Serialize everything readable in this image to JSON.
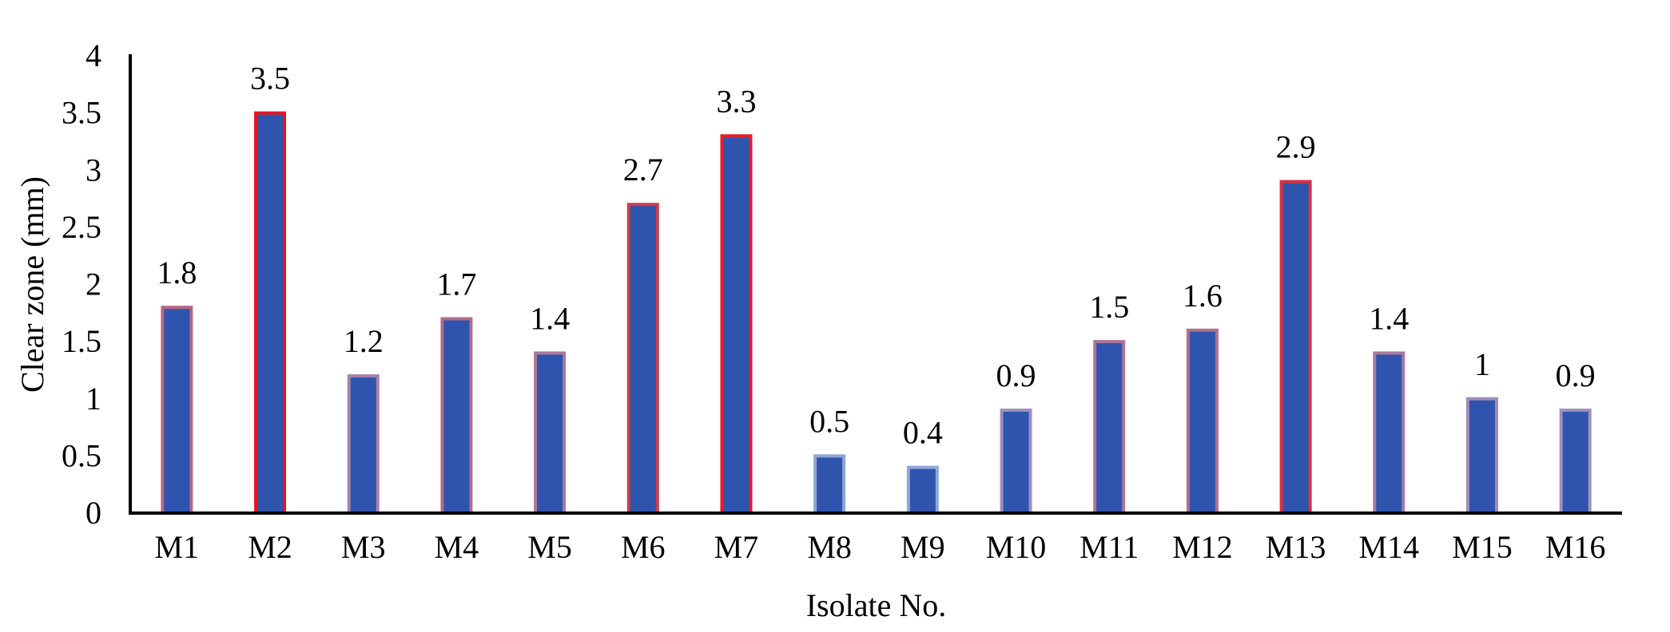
{
  "chart_data": {
    "type": "bar",
    "title": "",
    "xlabel": "Isolate No.",
    "ylabel": "Clear zone (mm)",
    "ylim": [
      0,
      4
    ],
    "yticks": [
      0,
      0.5,
      1,
      1.5,
      2,
      2.5,
      3,
      3.5,
      4
    ],
    "ytick_labels": [
      "0",
      "0.5",
      "1",
      "1.5",
      "2",
      "2.5",
      "3",
      "3.5",
      "4"
    ],
    "grid": false,
    "categories": [
      "M1",
      "M2",
      "M3",
      "M4",
      "M5",
      "M6",
      "M7",
      "M8",
      "M9",
      "M10",
      "M11",
      "M12",
      "M13",
      "M14",
      "M15",
      "M16"
    ],
    "values": [
      1.8,
      3.5,
      1.2,
      1.7,
      1.4,
      2.7,
      3.3,
      0.5,
      0.4,
      0.9,
      1.5,
      1.6,
      2.9,
      1.4,
      1.0,
      0.9
    ],
    "data_labels": [
      "1.8",
      "3.5",
      "1.2",
      "1.7",
      "1.4",
      "2.7",
      "3.3",
      "0.5",
      "0.4",
      "0.9",
      "1.5",
      "1.6",
      "2.9",
      "1.4",
      "1",
      "0.9"
    ],
    "colors": {
      "bar_fill": "#2f54ad",
      "outline_high": "#e8141c",
      "outline_low": "#8fa8dc",
      "axis": "#000000"
    }
  }
}
